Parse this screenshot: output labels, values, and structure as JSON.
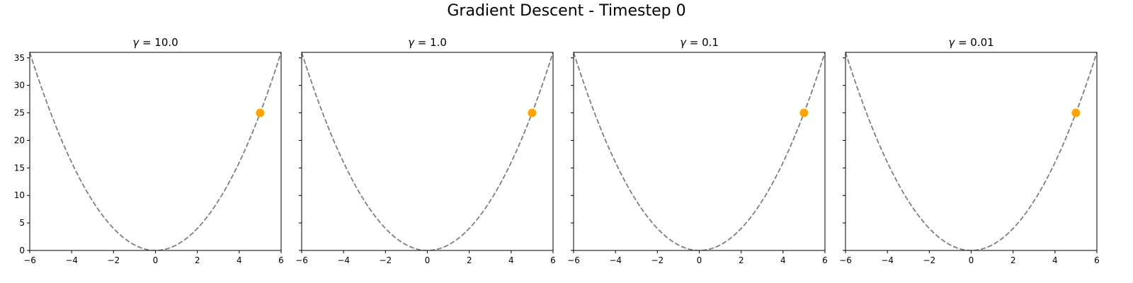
{
  "suptitle": "Gradient Descent - Timestep 0",
  "colors": {
    "curve": "#7f7f7f",
    "point": "#ffa500",
    "axes": "#000000"
  },
  "chart_data": [
    {
      "type": "line",
      "title": "γ = 10.0",
      "title_parts": {
        "symbol": "γ",
        "relation": " = ",
        "value": "10.0"
      },
      "function": "y = x^2",
      "series": [
        {
          "style": "dashed",
          "x": [
            -6,
            -5,
            -4,
            -3,
            -2,
            -1,
            0,
            1,
            2,
            3,
            4,
            5,
            6
          ],
          "y": [
            36,
            25,
            16,
            9,
            4,
            1,
            0,
            1,
            4,
            9,
            16,
            25,
            36
          ]
        },
        {
          "style": "marker",
          "x": [
            5
          ],
          "y": [
            25
          ]
        }
      ],
      "xlim": [
        -6,
        6
      ],
      "ylim": [
        0,
        36
      ],
      "xticks": [
        -6,
        -4,
        -2,
        0,
        2,
        4,
        6
      ],
      "xtick_labels": [
        "−6",
        "−4",
        "−2",
        "0",
        "2",
        "4",
        "6"
      ],
      "yticks": [
        0,
        5,
        10,
        15,
        20,
        25,
        30,
        35
      ],
      "ytick_labels": [
        "0",
        "5",
        "10",
        "15",
        "20",
        "25",
        "30",
        "35"
      ],
      "show_ytick_labels": true,
      "grid": false
    },
    {
      "type": "line",
      "title": "γ = 1.0",
      "title_parts": {
        "symbol": "γ",
        "relation": " = ",
        "value": "1.0"
      },
      "function": "y = x^2",
      "series": [
        {
          "style": "dashed",
          "x": [
            -6,
            -5,
            -4,
            -3,
            -2,
            -1,
            0,
            1,
            2,
            3,
            4,
            5,
            6
          ],
          "y": [
            36,
            25,
            16,
            9,
            4,
            1,
            0,
            1,
            4,
            9,
            16,
            25,
            36
          ]
        },
        {
          "style": "marker",
          "x": [
            5
          ],
          "y": [
            25
          ]
        }
      ],
      "xlim": [
        -6,
        6
      ],
      "ylim": [
        0,
        36
      ],
      "xticks": [
        -6,
        -4,
        -2,
        0,
        2,
        4,
        6
      ],
      "xtick_labels": [
        "−6",
        "−4",
        "−2",
        "0",
        "2",
        "4",
        "6"
      ],
      "yticks": [
        0,
        5,
        10,
        15,
        20,
        25,
        30,
        35
      ],
      "show_ytick_labels": false,
      "grid": false
    },
    {
      "type": "line",
      "title": "γ = 0.1",
      "title_parts": {
        "symbol": "γ",
        "relation": " = ",
        "value": "0.1"
      },
      "function": "y = x^2",
      "series": [
        {
          "style": "dashed",
          "x": [
            -6,
            -5,
            -4,
            -3,
            -2,
            -1,
            0,
            1,
            2,
            3,
            4,
            5,
            6
          ],
          "y": [
            36,
            25,
            16,
            9,
            4,
            1,
            0,
            1,
            4,
            9,
            16,
            25,
            36
          ]
        },
        {
          "style": "marker",
          "x": [
            5
          ],
          "y": [
            25
          ]
        }
      ],
      "xlim": [
        -6,
        6
      ],
      "ylim": [
        0,
        36
      ],
      "xticks": [
        -6,
        -4,
        -2,
        0,
        2,
        4,
        6
      ],
      "xtick_labels": [
        "−6",
        "−4",
        "−2",
        "0",
        "2",
        "4",
        "6"
      ],
      "yticks": [
        0,
        5,
        10,
        15,
        20,
        25,
        30,
        35
      ],
      "show_ytick_labels": false,
      "grid": false
    },
    {
      "type": "line",
      "title": "γ = 0.01",
      "title_parts": {
        "symbol": "γ",
        "relation": " = ",
        "value": "0.01"
      },
      "function": "y = x^2",
      "series": [
        {
          "style": "dashed",
          "x": [
            -6,
            -5,
            -4,
            -3,
            -2,
            -1,
            0,
            1,
            2,
            3,
            4,
            5,
            6
          ],
          "y": [
            36,
            25,
            16,
            9,
            4,
            1,
            0,
            1,
            4,
            9,
            16,
            25,
            36
          ]
        },
        {
          "style": "marker",
          "x": [
            5
          ],
          "y": [
            25
          ]
        }
      ],
      "xlim": [
        -6,
        6
      ],
      "ylim": [
        0,
        36
      ],
      "xticks": [
        -6,
        -4,
        -2,
        0,
        2,
        4,
        6
      ],
      "xtick_labels": [
        "−6",
        "−4",
        "−2",
        "0",
        "2",
        "4",
        "6"
      ],
      "yticks": [
        0,
        5,
        10,
        15,
        20,
        25,
        30,
        35
      ],
      "show_ytick_labels": false,
      "grid": false
    }
  ]
}
